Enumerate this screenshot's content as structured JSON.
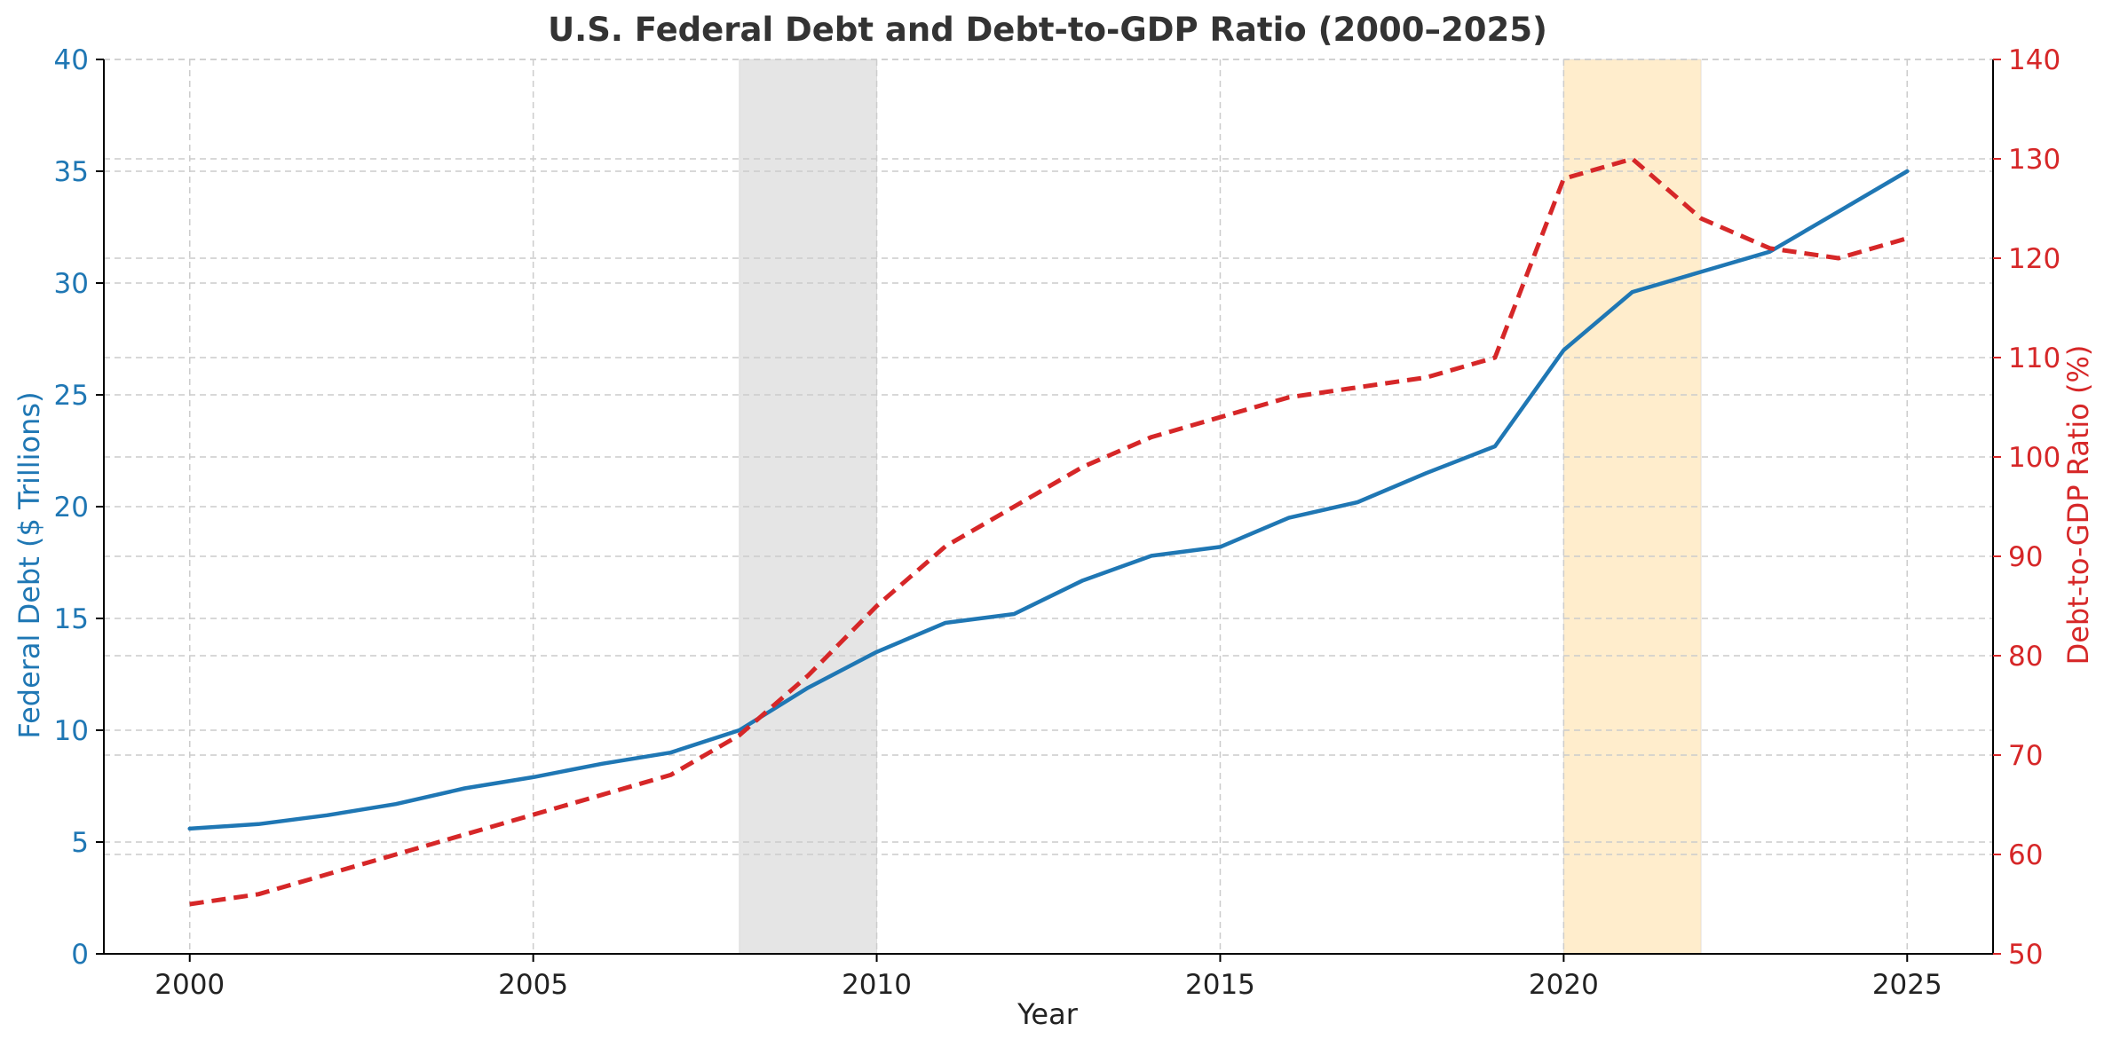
{
  "chart_data": {
    "type": "line",
    "title": "U.S. Federal Debt and Debt-to-GDP Ratio (2000–2025)",
    "xlabel": "Year",
    "ylabel_left": "Federal Debt ($ Trillions)",
    "ylabel_right": "Debt-to-GDP Ratio (%)",
    "xlim": [
      1998.75,
      2026.25
    ],
    "ylim_left": [
      0,
      40
    ],
    "ylim_right": [
      50,
      140
    ],
    "x_ticks": [
      2000,
      2005,
      2010,
      2015,
      2020,
      2025
    ],
    "y_ticks_left": [
      0,
      5,
      10,
      15,
      20,
      25,
      30,
      35,
      40
    ],
    "y_ticks_right": [
      50,
      60,
      70,
      80,
      90,
      100,
      110,
      120,
      130,
      140
    ],
    "grid": true,
    "shaded_regions": [
      {
        "start": 2008,
        "end": 2010,
        "color": "#e5e5e5"
      },
      {
        "start": 2020,
        "end": 2022,
        "color": "#ffedcc"
      }
    ],
    "x": [
      2000,
      2001,
      2002,
      2003,
      2004,
      2005,
      2006,
      2007,
      2008,
      2009,
      2010,
      2011,
      2012,
      2013,
      2014,
      2015,
      2016,
      2017,
      2018,
      2019,
      2020,
      2021,
      2022,
      2023,
      2024,
      2025
    ],
    "series": [
      {
        "axis": "left",
        "color": "#1f77b4",
        "style": "solid",
        "x": [
          2000,
          2001,
          2002,
          2003,
          2004,
          2005,
          2006,
          2007,
          2008,
          2009,
          2010,
          2011,
          2012,
          2013,
          2014,
          2015,
          2016,
          2017,
          2018,
          2019,
          2020,
          2021,
          2022,
          2023,
          2024,
          2025
        ],
        "values": [
          5.6,
          5.8,
          6.2,
          6.7,
          7.4,
          7.9,
          8.5,
          9.0,
          10.0,
          11.9,
          13.5,
          14.8,
          15.2,
          16.7,
          17.8,
          18.2,
          19.5,
          20.2,
          21.5,
          22.7,
          27.0,
          29.6,
          30.5,
          31.4,
          33.2,
          35.0
        ]
      },
      {
        "axis": "right",
        "color": "#d62728",
        "style": "dashed",
        "x": [
          2000,
          2001,
          2002,
          2003,
          2004,
          2005,
          2006,
          2007,
          2008,
          2009,
          2010,
          2011,
          2012,
          2013,
          2014,
          2015,
          2016,
          2017,
          2018,
          2019,
          2020,
          2021,
          2022,
          2023,
          2024,
          2025
        ],
        "values": [
          55,
          56,
          58,
          60,
          62,
          64,
          66,
          68,
          72,
          78,
          85,
          91,
          95,
          99,
          102,
          104,
          106,
          107,
          108,
          110,
          128,
          130,
          124,
          121,
          120,
          122
        ]
      }
    ],
    "colors": {
      "left_axis": "#1f77b4",
      "right_axis": "#d62728",
      "title": "#333333"
    }
  }
}
